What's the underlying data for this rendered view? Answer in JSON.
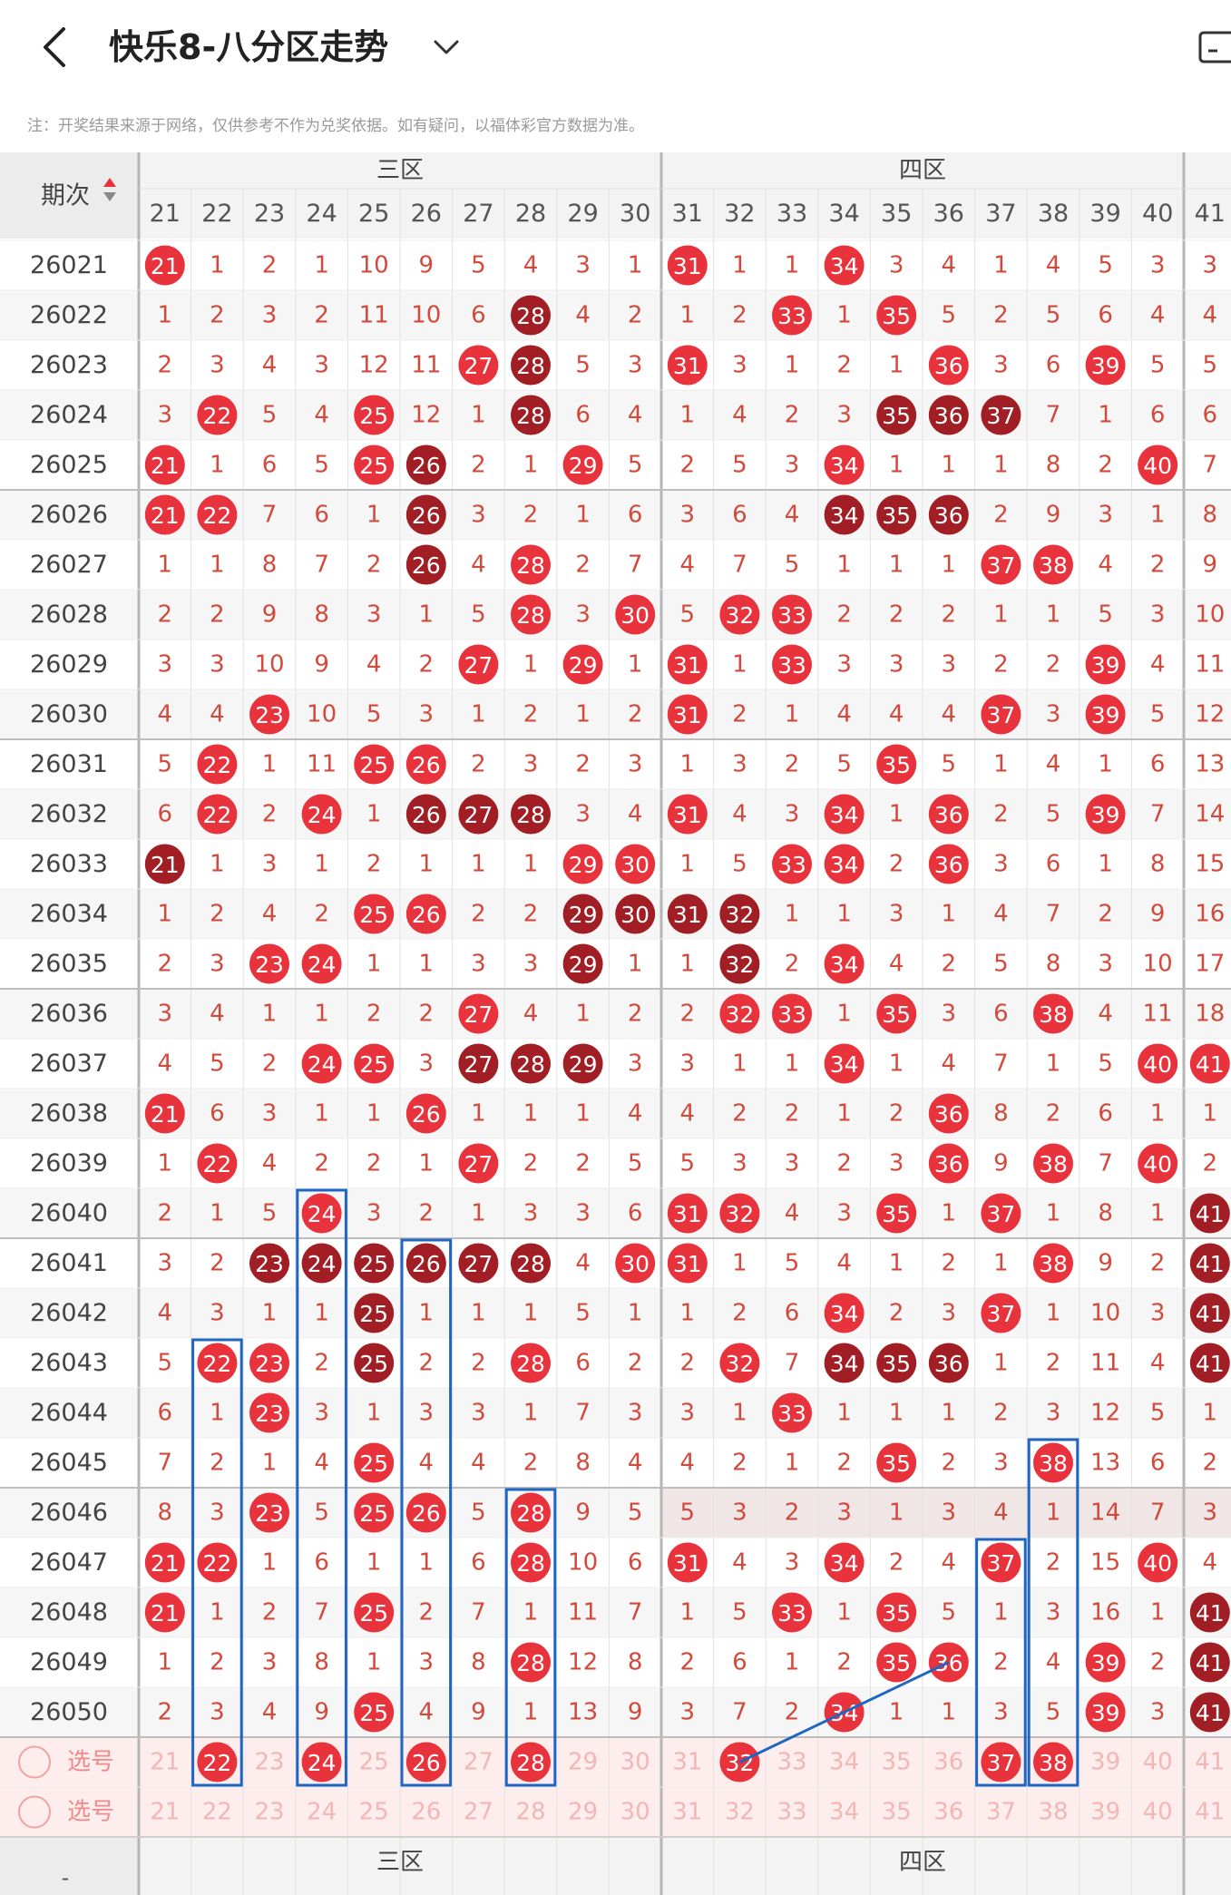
{
  "header": {
    "title": "快乐8-八分区走势",
    "back_icon": "chevron-left-icon",
    "dropdown_icon": "chevron-down-icon",
    "right_icon": "device-icon"
  },
  "note": "注：开奖结果来源于网络，仅供参考不作为兑奖依据。如有疑问，以福体彩官方数据为准。",
  "table": {
    "period_label": "期次",
    "zone_labels": [
      "三区",
      "四区"
    ],
    "columns": [
      21,
      22,
      23,
      24,
      25,
      26,
      27,
      28,
      29,
      30,
      31,
      32,
      33,
      34,
      35,
      36,
      37,
      38,
      39,
      40,
      41
    ],
    "rows": [
      {
        "issue": "26021",
        "cells": [
          "21",
          "1",
          "2",
          "1",
          "10",
          "9",
          "5",
          "4",
          "3",
          "1",
          "31",
          "1",
          "1",
          "34",
          "3",
          "4",
          "1",
          "4",
          "5",
          "3",
          "3"
        ]
      },
      {
        "issue": "26022",
        "cells": [
          "1",
          "2",
          "3",
          "2",
          "11",
          "10",
          "6",
          "28",
          "4",
          "2",
          "1",
          "2",
          "33",
          "1",
          "35",
          "5",
          "2",
          "5",
          "6",
          "4",
          "4"
        ]
      },
      {
        "issue": "26023",
        "cells": [
          "2",
          "3",
          "4",
          "3",
          "12",
          "11",
          "27",
          "28",
          "5",
          "3",
          "31",
          "3",
          "1",
          "2",
          "1",
          "36",
          "3",
          "6",
          "39",
          "5",
          "5"
        ]
      },
      {
        "issue": "26024",
        "cells": [
          "3",
          "22",
          "5",
          "4",
          "25",
          "12",
          "1",
          "28",
          "6",
          "4",
          "1",
          "4",
          "2",
          "3",
          "35",
          "36",
          "37",
          "7",
          "1",
          "6",
          "6"
        ]
      },
      {
        "issue": "26025",
        "cells": [
          "21",
          "1",
          "6",
          "5",
          "25",
          "26",
          "2",
          "1",
          "29",
          "5",
          "2",
          "5",
          "3",
          "34",
          "1",
          "1",
          "1",
          "8",
          "2",
          "40",
          "7"
        ]
      },
      {
        "issue": "26026",
        "cells": [
          "21",
          "22",
          "7",
          "6",
          "1",
          "26",
          "3",
          "2",
          "1",
          "6",
          "3",
          "6",
          "4",
          "34",
          "35",
          "36",
          "2",
          "9",
          "3",
          "1",
          "8"
        ]
      },
      {
        "issue": "26027",
        "cells": [
          "1",
          "1",
          "8",
          "7",
          "2",
          "26",
          "4",
          "28",
          "2",
          "7",
          "4",
          "7",
          "5",
          "1",
          "1",
          "1",
          "37",
          "38",
          "4",
          "2",
          "9"
        ]
      },
      {
        "issue": "26028",
        "cells": [
          "2",
          "2",
          "9",
          "8",
          "3",
          "1",
          "5",
          "28",
          "3",
          "30",
          "5",
          "32",
          "33",
          "2",
          "2",
          "2",
          "1",
          "1",
          "5",
          "3",
          "10"
        ]
      },
      {
        "issue": "26029",
        "cells": [
          "3",
          "3",
          "10",
          "9",
          "4",
          "2",
          "27",
          "1",
          "29",
          "1",
          "31",
          "1",
          "33",
          "3",
          "3",
          "3",
          "2",
          "2",
          "39",
          "4",
          "11"
        ]
      },
      {
        "issue": "26030",
        "cells": [
          "4",
          "4",
          "23",
          "10",
          "5",
          "3",
          "1",
          "2",
          "1",
          "2",
          "31",
          "2",
          "1",
          "4",
          "4",
          "4",
          "37",
          "3",
          "39",
          "5",
          "12"
        ]
      },
      {
        "issue": "26031",
        "cells": [
          "5",
          "22",
          "1",
          "11",
          "25",
          "26",
          "2",
          "3",
          "2",
          "3",
          "1",
          "3",
          "2",
          "5",
          "35",
          "5",
          "1",
          "4",
          "1",
          "6",
          "13"
        ]
      },
      {
        "issue": "26032",
        "cells": [
          "6",
          "22",
          "2",
          "24",
          "1",
          "26",
          "27",
          "28",
          "3",
          "4",
          "31",
          "4",
          "3",
          "34",
          "1",
          "36",
          "2",
          "5",
          "39",
          "7",
          "14"
        ]
      },
      {
        "issue": "26033",
        "cells": [
          "21",
          "1",
          "3",
          "1",
          "2",
          "1",
          "1",
          "1",
          "29",
          "30",
          "1",
          "5",
          "33",
          "34",
          "2",
          "36",
          "3",
          "6",
          "1",
          "8",
          "15"
        ]
      },
      {
        "issue": "26034",
        "cells": [
          "1",
          "2",
          "4",
          "2",
          "25",
          "26",
          "2",
          "2",
          "29",
          "30",
          "31",
          "32",
          "1",
          "1",
          "3",
          "1",
          "4",
          "7",
          "2",
          "9",
          "16"
        ]
      },
      {
        "issue": "26035",
        "cells": [
          "2",
          "3",
          "23",
          "24",
          "1",
          "1",
          "3",
          "3",
          "29",
          "1",
          "1",
          "32",
          "2",
          "34",
          "4",
          "2",
          "5",
          "8",
          "3",
          "10",
          "17"
        ]
      },
      {
        "issue": "26036",
        "cells": [
          "3",
          "4",
          "1",
          "1",
          "2",
          "2",
          "27",
          "4",
          "1",
          "2",
          "2",
          "32",
          "33",
          "1",
          "35",
          "3",
          "6",
          "38",
          "4",
          "11",
          "18"
        ]
      },
      {
        "issue": "26037",
        "cells": [
          "4",
          "5",
          "2",
          "24",
          "25",
          "3",
          "27",
          "28",
          "29",
          "3",
          "3",
          "1",
          "1",
          "34",
          "1",
          "4",
          "7",
          "1",
          "5",
          "40",
          "41"
        ]
      },
      {
        "issue": "26038",
        "cells": [
          "21",
          "6",
          "3",
          "1",
          "1",
          "26",
          "1",
          "1",
          "1",
          "4",
          "4",
          "2",
          "2",
          "1",
          "2",
          "36",
          "8",
          "2",
          "6",
          "1",
          "1"
        ]
      },
      {
        "issue": "26039",
        "cells": [
          "1",
          "22",
          "4",
          "2",
          "2",
          "1",
          "27",
          "2",
          "2",
          "5",
          "5",
          "3",
          "3",
          "2",
          "3",
          "36",
          "9",
          "38",
          "7",
          "40",
          "2"
        ]
      },
      {
        "issue": "26040",
        "cells": [
          "2",
          "1",
          "5",
          "24",
          "3",
          "2",
          "1",
          "3",
          "3",
          "6",
          "31",
          "32",
          "4",
          "3",
          "35",
          "1",
          "37",
          "1",
          "8",
          "1",
          "41"
        ]
      },
      {
        "issue": "26041",
        "cells": [
          "3",
          "2",
          "23",
          "24",
          "25",
          "26",
          "27",
          "28",
          "4",
          "30",
          "31",
          "1",
          "5",
          "4",
          "1",
          "2",
          "1",
          "38",
          "9",
          "2",
          "41"
        ]
      },
      {
        "issue": "26042",
        "cells": [
          "4",
          "3",
          "1",
          "1",
          "25",
          "1",
          "1",
          "1",
          "5",
          "1",
          "1",
          "2",
          "6",
          "34",
          "2",
          "3",
          "37",
          "1",
          "10",
          "3",
          "41"
        ]
      },
      {
        "issue": "26043",
        "cells": [
          "5",
          "22",
          "23",
          "2",
          "25",
          "2",
          "2",
          "28",
          "6",
          "2",
          "2",
          "32",
          "7",
          "34",
          "35",
          "36",
          "1",
          "2",
          "11",
          "4",
          "41"
        ]
      },
      {
        "issue": "26044",
        "cells": [
          "6",
          "1",
          "23",
          "3",
          "1",
          "3",
          "3",
          "1",
          "7",
          "3",
          "3",
          "1",
          "33",
          "1",
          "1",
          "1",
          "2",
          "3",
          "12",
          "5",
          "1"
        ]
      },
      {
        "issue": "26045",
        "cells": [
          "7",
          "2",
          "1",
          "4",
          "25",
          "4",
          "4",
          "2",
          "8",
          "4",
          "4",
          "2",
          "1",
          "2",
          "35",
          "2",
          "3",
          "38",
          "13",
          "6",
          "2"
        ]
      },
      {
        "issue": "26046",
        "cells": [
          "8",
          "3",
          "23",
          "5",
          "25",
          "26",
          "5",
          "28",
          "9",
          "5",
          "5",
          "3",
          "2",
          "3",
          "1",
          "3",
          "4",
          "1",
          "14",
          "7",
          "3"
        ]
      },
      {
        "issue": "26047",
        "cells": [
          "21",
          "22",
          "1",
          "6",
          "1",
          "1",
          "6",
          "28",
          "10",
          "6",
          "31",
          "4",
          "3",
          "34",
          "2",
          "4",
          "37",
          "2",
          "15",
          "40",
          "4"
        ]
      },
      {
        "issue": "26048",
        "cells": [
          "21",
          "1",
          "2",
          "7",
          "25",
          "2",
          "7",
          "1",
          "11",
          "7",
          "1",
          "5",
          "33",
          "1",
          "35",
          "5",
          "1",
          "3",
          "16",
          "1",
          "41"
        ]
      },
      {
        "issue": "26049",
        "cells": [
          "1",
          "2",
          "3",
          "8",
          "1",
          "3",
          "8",
          "28",
          "12",
          "8",
          "2",
          "6",
          "1",
          "2",
          "35",
          "36",
          "2",
          "4",
          "39",
          "2",
          "41"
        ]
      },
      {
        "issue": "26050",
        "cells": [
          "2",
          "3",
          "4",
          "9",
          "25",
          "4",
          "9",
          "1",
          "13",
          "9",
          "3",
          "7",
          "2",
          "34",
          "1",
          "1",
          "3",
          "5",
          "39",
          "3",
          "41"
        ]
      }
    ],
    "select_rows": [
      {
        "label": "选号",
        "selected": [
          "22",
          "24",
          "26",
          "28",
          "32",
          "37",
          "38"
        ]
      },
      {
        "label": "选号",
        "selected": []
      }
    ],
    "footer_dash": "-"
  },
  "colors": {
    "ball_red": "#e8323c",
    "ball_dark": "#a01e24",
    "number_text": "#d24a3c",
    "stripe": "#f6f6f6",
    "select_bg": "#fdeeed",
    "annotation_blue": "#1f66c4"
  }
}
